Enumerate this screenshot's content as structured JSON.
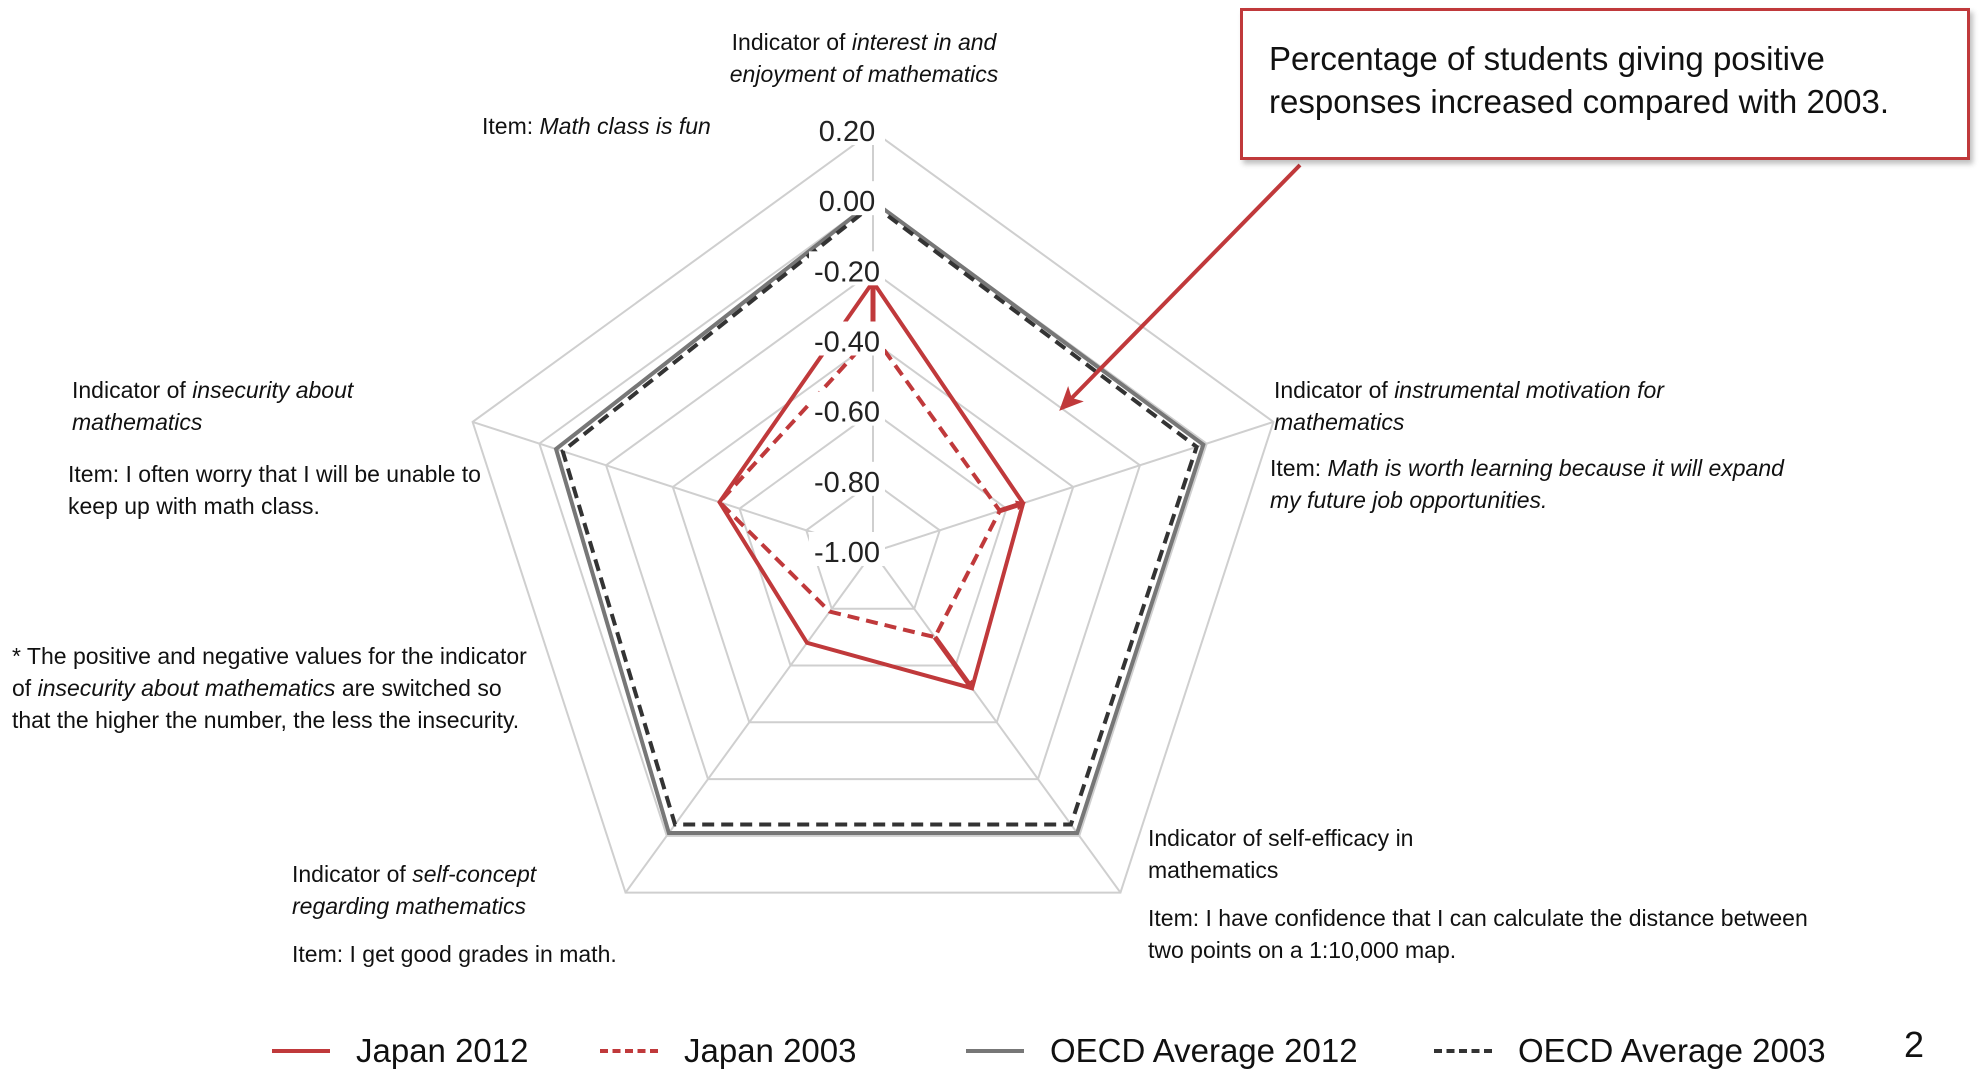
{
  "callout": {
    "text": "Percentage of students giving positive responses increased compared with 2003."
  },
  "axes": [
    {
      "indicator_prefix": "Indicator of ",
      "indicator_name": "interest in and enjoyment of mathematics",
      "item_prefix": "Item: ",
      "item_text": "Math class is fun"
    },
    {
      "indicator_prefix": "Indicator of ",
      "indicator_name": "instrumental motivation for mathematics",
      "item_prefix": "Item: ",
      "item_text": "Math is worth learning because it will expand my future job opportunities."
    },
    {
      "indicator_prefix": "Indicator of self-efficacy in mathematics",
      "indicator_name": "",
      "item_prefix": "Item: ",
      "item_text": "I have confidence that I can calculate the distance between two points on a 1:10,000 map."
    },
    {
      "indicator_prefix": "Indicator of ",
      "indicator_name": "self-concept regarding mathematics",
      "item_prefix": "Item: ",
      "item_text": "I get good grades in math."
    },
    {
      "indicator_prefix": "Indicator of ",
      "indicator_name": "insecurity about mathematics",
      "item_prefix": "Item: ",
      "item_text": "I often worry that I will be unable to keep up with math class."
    }
  ],
  "note": {
    "part1": "* The positive and negative values for the indicator of ",
    "italic": "insecurity about mathematics",
    "part2": " are switched so that the higher the number, the less the insecurity."
  },
  "page_number": "2",
  "colors": {
    "japan": "#c0393b",
    "oecd_2012": "#777777",
    "oecd_2003": "#333333",
    "grid": "#cfcfcf"
  },
  "chart_data": {
    "type": "radar",
    "categories": [
      "interest in and enjoyment of mathematics",
      "instrumental motivation for mathematics",
      "self-efficacy in mathematics",
      "self-concept regarding mathematics",
      "insecurity about mathematics"
    ],
    "rlim": [
      -1.0,
      0.2
    ],
    "ticks": [
      "0.20",
      "0.00",
      "-0.20",
      "-0.40",
      "-0.60",
      "-0.80",
      "-1.00"
    ],
    "tick_values": [
      0.2,
      0.0,
      -0.2,
      -0.4,
      -0.6,
      -0.8,
      -1.0
    ],
    "series": [
      {
        "name": "Japan 2012",
        "values": [
          -0.23,
          -0.55,
          -0.52,
          -0.68,
          -0.54
        ],
        "style": "solid",
        "color": "#c0393b"
      },
      {
        "name": "Japan 2003",
        "values": [
          -0.38,
          -0.62,
          -0.7,
          -0.79,
          -0.54
        ],
        "style": "dashed",
        "color": "#c0393b"
      },
      {
        "name": "OECD Average 2012",
        "values": [
          0.0,
          -0.01,
          -0.01,
          -0.01,
          -0.05
        ],
        "style": "solid",
        "color": "#777777"
      },
      {
        "name": "OECD Average 2003",
        "values": [
          -0.01,
          -0.03,
          -0.04,
          -0.04,
          -0.07
        ],
        "style": "dashed",
        "color": "#333333"
      }
    ],
    "arrows": [
      {
        "axis": "interest in and enjoyment of mathematics",
        "from": -0.38,
        "to": -0.23
      },
      {
        "axis": "instrumental motivation for mathematics",
        "from": -0.62,
        "to": -0.55
      },
      {
        "axis": "self-efficacy in mathematics",
        "from": -0.7,
        "to": -0.52
      }
    ],
    "grid": true,
    "legend_position": "bottom"
  }
}
